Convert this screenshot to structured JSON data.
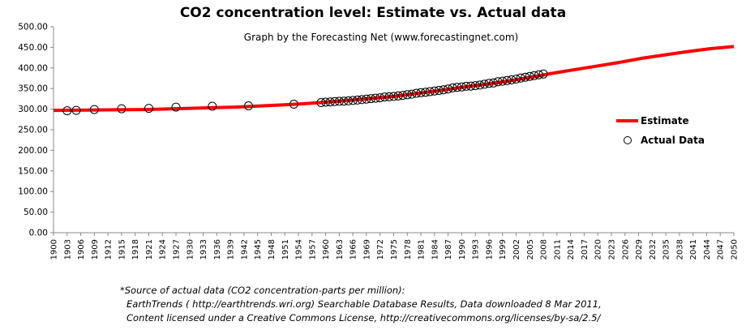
{
  "chart_data": {
    "type": "line",
    "title": "CO2 concentration level: Estimate vs. Actual data",
    "subtitle": "Graph by the  Forecasting Net (www.forecastingnet.com)",
    "xlabel": "",
    "ylabel": "",
    "xlim": [
      1900,
      2050
    ],
    "ylim": [
      0,
      500
    ],
    "y_ticks": [
      0,
      50,
      100,
      150,
      200,
      250,
      300,
      350,
      400,
      450,
      500
    ],
    "y_tick_labels": [
      "0.00",
      "50.00",
      "100.00",
      "150.00",
      "200.00",
      "250.00",
      "300.00",
      "350.00",
      "400.00",
      "450.00",
      "500.00"
    ],
    "x_ticks": [
      1900,
      1903,
      1906,
      1909,
      1912,
      1915,
      1918,
      1921,
      1924,
      1927,
      1930,
      1933,
      1936,
      1939,
      1942,
      1945,
      1948,
      1951,
      1954,
      1957,
      1960,
      1963,
      1966,
      1969,
      1972,
      1975,
      1978,
      1981,
      1984,
      1987,
      1990,
      1993,
      1996,
      1999,
      2002,
      2005,
      2008,
      2011,
      2014,
      2017,
      2020,
      2023,
      2026,
      2029,
      2032,
      2035,
      2038,
      2041,
      2044,
      2047,
      2050
    ],
    "grid": false,
    "legend_position": "right",
    "series": [
      {
        "name": "Estimate",
        "type": "line",
        "color": "#ff0000",
        "x": [
          1900,
          1910,
          1920,
          1930,
          1940,
          1950,
          1955,
          1960,
          1965,
          1970,
          1975,
          1980,
          1985,
          1990,
          1995,
          2000,
          2005,
          2010,
          2015,
          2020,
          2025,
          2030,
          2035,
          2040,
          2045,
          2050
        ],
        "y": [
          297,
          298,
          299,
          302,
          305,
          310,
          313,
          317,
          321,
          326,
          331,
          338,
          345,
          353,
          360,
          368,
          377,
          387,
          396,
          405,
          414,
          424,
          432,
          440,
          447,
          452
        ]
      },
      {
        "name": "Actual Data",
        "type": "scatter",
        "color": "#000000",
        "x": [
          1903,
          1905,
          1909,
          1915,
          1921,
          1927,
          1935,
          1943,
          1953,
          1959,
          1960,
          1961,
          1962,
          1963,
          1964,
          1965,
          1966,
          1967,
          1968,
          1969,
          1970,
          1971,
          1972,
          1973,
          1974,
          1975,
          1976,
          1977,
          1978,
          1979,
          1980,
          1981,
          1982,
          1983,
          1984,
          1985,
          1986,
          1987,
          1988,
          1989,
          1990,
          1991,
          1992,
          1993,
          1994,
          1995,
          1996,
          1997,
          1998,
          1999,
          2000,
          2001,
          2002,
          2003,
          2004,
          2005,
          2006,
          2007,
          2008
        ],
        "y": [
          296,
          297,
          299,
          301,
          302,
          305,
          307,
          308,
          312,
          316,
          317,
          317.5,
          318.5,
          319,
          319.5,
          320,
          321,
          322,
          323,
          324.5,
          325.5,
          326.5,
          327.5,
          329.5,
          330,
          331,
          332,
          333.5,
          335,
          336.5,
          338.5,
          340,
          341,
          342.5,
          344,
          345.5,
          347,
          349,
          351.5,
          353,
          354,
          355.5,
          356,
          357,
          358.5,
          360.5,
          362.5,
          363.5,
          366.5,
          368,
          369.5,
          371,
          373,
          375.5,
          377.5,
          379.5,
          381.5,
          383.5,
          385.5
        ]
      }
    ]
  },
  "source_note": {
    "line1": "*Source of actual data (CO2 concentration-parts per million):",
    "line2": "EarthTrends ( http://earthtrends.wri.org) Searchable Database Results, Data downloaded 8 Mar 2011,",
    "line3": "Content licensed under a Creative Commons License, http://creativecommons.org/licenses/by-sa/2.5/"
  }
}
